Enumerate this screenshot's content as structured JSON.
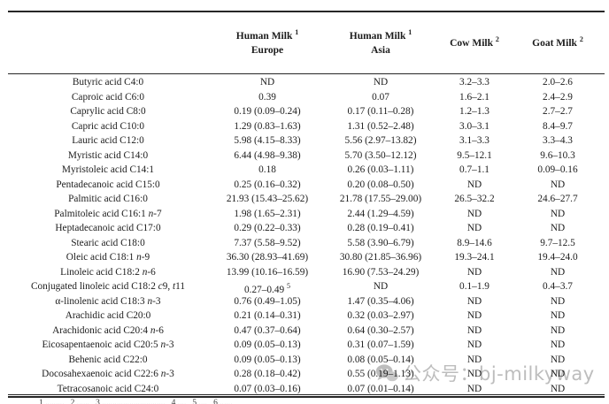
{
  "table": {
    "columns": [
      {
        "title_html": "Human Milk <sup>1</sup>",
        "subtitle": "Europe"
      },
      {
        "title_html": "Human Milk <sup>1</sup>",
        "subtitle": "Asia"
      },
      {
        "title_html": "Cow Milk <sup>2</sup>",
        "subtitle": ""
      },
      {
        "title_html": "Goat Milk <sup>2</sup>",
        "subtitle": ""
      }
    ],
    "rows": [
      {
        "label": "Butyric acid C4:0",
        "eu": "ND",
        "asia": "ND",
        "cow": "3.2–3.3",
        "goat": "2.0–2.6"
      },
      {
        "label": "Caproic acid C6:0",
        "eu": "0.39",
        "asia": "0.07",
        "cow": "1.6–2.1",
        "goat": "2.4–2.9"
      },
      {
        "label": "Caprylic acid C8:0",
        "eu": "0.19 (0.09–0.24)",
        "asia": "0.17 (0.11–0.28)",
        "cow": "1.2–1.3",
        "goat": "2.7–2.7"
      },
      {
        "label": "Capric acid C10:0",
        "eu": "1.29 (0.83–1.63)",
        "asia": "1.31 (0.52–2.48)",
        "cow": "3.0–3.1",
        "goat": "8.4–9.7"
      },
      {
        "label": "Lauric acid C12:0",
        "eu": "5.98 (4.15–8.33)",
        "asia": "5.56 (2.97–13.82)",
        "cow": "3.1–3.3",
        "goat": "3.3–4.3"
      },
      {
        "label": "Myristic acid C14:0",
        "eu": "6.44 (4.98–9.38)",
        "asia": "5.70 (3.50–12.12)",
        "cow": "9.5–12.1",
        "goat": "9.6–10.3"
      },
      {
        "label": "Myristoleic acid C14:1",
        "eu": "0.18",
        "asia": "0.26 (0.03–1.11)",
        "cow": "0.7–1.1",
        "goat": "0.09–0.16"
      },
      {
        "label": "Pentadecanoic acid C15:0",
        "eu": "0.25 (0.16–0.32)",
        "asia": "0.20 (0.08–0.50)",
        "cow": "ND",
        "goat": "ND"
      },
      {
        "label": "Palmitic acid C16:0",
        "eu": "21.93 (15.43–25.62)",
        "asia": "21.78 (17.55–29.00)",
        "cow": "26.5–32.2",
        "goat": "24.6–27.7"
      },
      {
        "label": "Palmitoleic acid C16:1 <i>n</i>-7",
        "eu": "1.98 (1.65–2.31)",
        "asia": "2.44 (1.29–4.59)",
        "cow": "ND",
        "goat": "ND"
      },
      {
        "label": "Heptadecanoic acid C17:0",
        "eu": "0.29 (0.22–0.33)",
        "asia": "0.28 (0.19–0.41)",
        "cow": "ND",
        "goat": "ND"
      },
      {
        "label": "Stearic acid C18:0",
        "eu": "7.37 (5.58–9.52)",
        "asia": "5.58 (3.90–6.79)",
        "cow": "8.9–14.6",
        "goat": "9.7–12.5"
      },
      {
        "label": "Oleic acid C18:1 <i>n</i>-9",
        "eu": "36.30 (28.93–41.69)",
        "asia": "30.80 (21.85–36.96)",
        "cow": "19.3–24.1",
        "goat": "19.4–24.0"
      },
      {
        "label": "Linoleic acid C18:2 <i>n</i>-6",
        "eu": "13.99 (10.16–16.59)",
        "asia": "16.90 (7.53–24.29)",
        "cow": "ND",
        "goat": "ND"
      },
      {
        "label": "Conjugated linoleic acid C18:2 <i>c</i>9, <i>t</i>11",
        "eu": "0.27–0.49 <sup>5</sup>",
        "asia": "ND",
        "cow": "0.1–1.9",
        "goat": "0.4–3.7"
      },
      {
        "label": "α-linolenic acid C18:3 <i>n</i>-3",
        "eu": "0.76 (0.49–1.05)",
        "asia": "1.47 (0.35–4.06)",
        "cow": "ND",
        "goat": "ND"
      },
      {
        "label": "Arachidic acid C20:0",
        "eu": "0.21 (0.14–0.31)",
        "asia": "0.32 (0.03–2.97)",
        "cow": "ND",
        "goat": "ND"
      },
      {
        "label": "Arachidonic acid C20:4 <i>n</i>-6",
        "eu": "0.47 (0.37–0.64)",
        "asia": "0.64 (0.30–2.57)",
        "cow": "ND",
        "goat": "ND"
      },
      {
        "label": "Eicosapentaenoic acid C20:5 <i>n</i>-3",
        "eu": "0.09 (0.05–0.13)",
        "asia": "0.31 (0.07–1.59)",
        "cow": "ND",
        "goat": "ND"
      },
      {
        "label": "Behenic acid C22:0",
        "eu": "0.09 (0.05–0.13)",
        "asia": "0.08 (0.05–0.14)",
        "cow": "ND",
        "goat": "ND"
      },
      {
        "label": "Docosahexaenoic acid C22:6 <i>n</i>-3",
        "eu": "0.28 (0.18–0.42)",
        "asia": "0.55 (0.19–1.13)",
        "cow": "ND",
        "goat": "ND"
      },
      {
        "label": "Tetracosanoic acid C24:0",
        "eu": "0.07 (0.03–0.16)",
        "asia": "0.07 (0.01–0.14)",
        "cow": "ND",
        "goat": "ND"
      }
    ]
  },
  "watermark": {
    "text": "公众号：bj-milkyway"
  },
  "fragments": {
    "caption_bottom_edge": "(    ),      (    )       (    ),      (    )",
    "footnote_top_edge": "1 .........   2 ......   3 ..............................   4 ....   5 ....   6 ......"
  }
}
